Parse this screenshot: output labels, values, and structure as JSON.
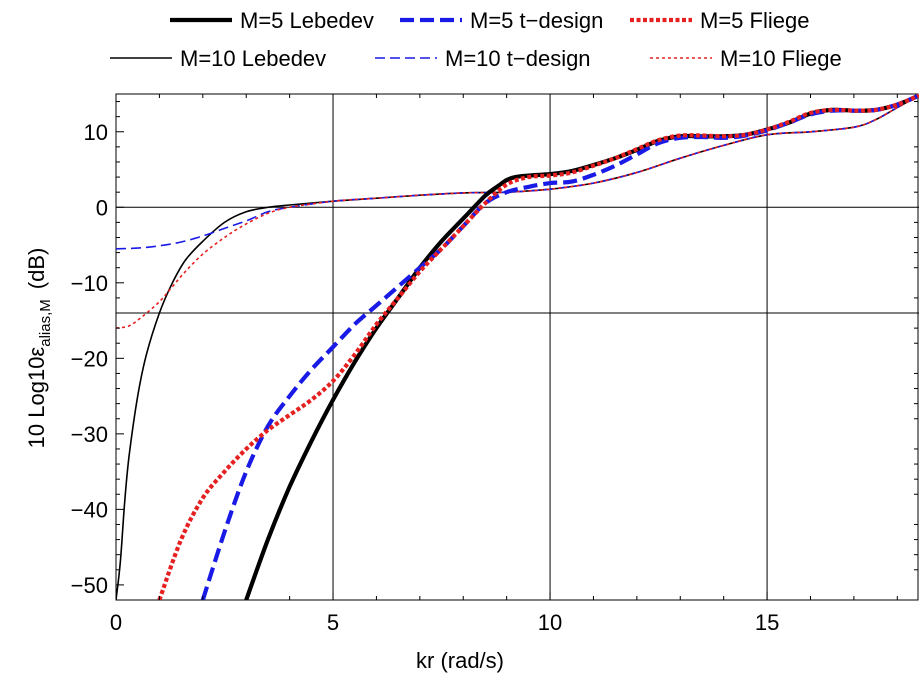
{
  "chart_data": {
    "type": "line",
    "xlabel": "kr (rad/s)",
    "ylabel": {
      "prefix": "10 Log10",
      "symbol": "ε",
      "subscript": "alias,M",
      "suffix": "(dB)"
    },
    "xlim": [
      0,
      18.5
    ],
    "ylim": [
      -52,
      15
    ],
    "xticks": [
      0,
      5,
      10,
      15
    ],
    "yticks": [
      10,
      0,
      -10,
      -20,
      -30,
      -40,
      -50
    ],
    "xtick_labels": [
      "0",
      "5",
      "10",
      "15"
    ],
    "ytick_labels": [
      "10",
      "0",
      "−10",
      "−20",
      "−30",
      "−40",
      "−50"
    ],
    "grid_x": [
      5,
      10,
      15
    ],
    "grid_y": [
      0,
      -14
    ],
    "legend_position": "top",
    "series": [
      {
        "name": "M=5 Lebedev",
        "color": "#000000",
        "dash": "solid",
        "weight": "thick",
        "x": [
          3.0,
          3.5,
          4.0,
          4.5,
          5.0,
          5.5,
          6.0,
          6.5,
          7.0,
          7.5,
          8.0,
          8.5,
          8.8,
          9.0,
          9.2,
          9.5,
          10.0,
          10.5,
          11.0,
          11.5,
          12.0,
          12.5,
          13.0,
          13.5,
          14.0,
          14.5,
          15.0,
          15.5,
          16.0,
          16.5,
          17.0,
          17.5,
          18.0,
          18.5
        ],
        "y": [
          -52,
          -44,
          -37,
          -31,
          -25.5,
          -20.5,
          -16,
          -12,
          -8,
          -4.5,
          -1.5,
          1.5,
          2.8,
          3.6,
          4.0,
          4.2,
          4.4,
          4.8,
          5.6,
          6.5,
          7.6,
          8.8,
          9.4,
          9.4,
          9.4,
          9.6,
          10.3,
          11.2,
          12.4,
          12.9,
          12.8,
          12.9,
          13.6,
          14.8
        ]
      },
      {
        "name": "M=5 t−design",
        "color": "#1a1ae6",
        "dash": "dashed",
        "weight": "thick",
        "x": [
          2.0,
          2.5,
          3.0,
          3.5,
          4.0,
          4.5,
          5.0,
          5.5,
          6.0,
          6.5,
          7.0,
          7.5,
          8.0,
          8.5,
          9.0,
          9.5,
          10.0,
          10.5,
          11.0,
          11.5,
          12.0,
          12.5,
          13.0,
          13.5,
          14.0,
          14.5,
          15.0,
          15.5,
          16.0,
          16.5,
          17.0,
          17.5,
          18.0,
          18.5
        ],
        "y": [
          -52,
          -43,
          -35,
          -29,
          -25,
          -21.5,
          -18.5,
          -15.5,
          -13,
          -10.5,
          -8,
          -5.5,
          -2.5,
          0.5,
          2.0,
          2.7,
          3.2,
          3.4,
          4.3,
          5.5,
          7.0,
          8.5,
          9.2,
          9.3,
          9.2,
          9.5,
          10.2,
          11.2,
          12.3,
          12.8,
          12.8,
          12.9,
          13.6,
          14.8
        ]
      },
      {
        "name": "M=5 Fliege",
        "color": "#e62020",
        "dash": "dotted",
        "weight": "thick",
        "x": [
          1.0,
          1.5,
          2.0,
          2.5,
          3.0,
          3.5,
          4.0,
          4.5,
          5.0,
          5.5,
          6.0,
          6.5,
          7.0,
          7.5,
          8.0,
          8.5,
          9.0,
          9.5,
          10.0,
          10.5,
          11.0,
          11.5,
          12.0,
          12.5,
          13.0,
          13.5,
          14.0,
          14.5,
          15.0,
          15.5,
          16.0,
          16.5,
          17.0,
          17.5,
          18.0,
          18.5
        ],
        "y": [
          -52,
          -44,
          -38.5,
          -35,
          -32,
          -29.5,
          -27.5,
          -25.5,
          -23,
          -19.5,
          -15.5,
          -12,
          -8.5,
          -5.5,
          -2.5,
          0.5,
          3.0,
          4.0,
          4.2,
          4.6,
          5.5,
          6.5,
          7.7,
          8.9,
          9.5,
          9.5,
          9.4,
          9.6,
          10.3,
          11.3,
          12.5,
          12.9,
          12.8,
          12.9,
          13.6,
          14.8
        ]
      },
      {
        "name": "M=10 Lebedev",
        "color": "#000000",
        "dash": "solid",
        "weight": "thin",
        "x": [
          0.0,
          0.1,
          0.2,
          0.3,
          0.5,
          0.7,
          1.0,
          1.3,
          1.6,
          2.0,
          2.5,
          3.0,
          3.5,
          4.0,
          5.0,
          6.0,
          7.0,
          8.0,
          9.0,
          10.0,
          11.0,
          12.0,
          13.0,
          14.0,
          15.0,
          16.0,
          17.0,
          17.5,
          18.0,
          18.5
        ],
        "y": [
          -52,
          -47,
          -39,
          -33,
          -25,
          -19.5,
          -14,
          -10,
          -7,
          -4.5,
          -2,
          -0.6,
          0,
          0.3,
          0.8,
          1.2,
          1.6,
          1.9,
          2.0,
          2.4,
          3.2,
          4.6,
          6.5,
          8.2,
          9.6,
          10.0,
          10.6,
          11.6,
          13.2,
          14.8
        ]
      },
      {
        "name": "M=10 t−design",
        "color": "#1a1ae6",
        "dash": "dashed",
        "weight": "thin",
        "x": [
          0.0,
          0.5,
          1.0,
          1.5,
          2.0,
          2.5,
          3.0,
          3.5,
          4.0,
          5.0,
          6.0,
          7.0,
          8.0,
          9.0,
          10.0,
          11.0,
          12.0,
          13.0,
          14.0,
          15.0,
          16.0,
          17.0,
          17.5,
          18.0,
          18.5
        ],
        "y": [
          -5.5,
          -5.4,
          -5.1,
          -4.6,
          -3.8,
          -2.8,
          -1.8,
          -0.6,
          0,
          0.8,
          1.2,
          1.6,
          1.9,
          2.0,
          2.4,
          3.2,
          4.6,
          6.5,
          8.2,
          9.6,
          10.0,
          10.6,
          11.6,
          13.2,
          14.8
        ]
      },
      {
        "name": "M=10 Fliege",
        "color": "#e62020",
        "dash": "dotted",
        "weight": "thin",
        "x": [
          0.0,
          0.3,
          0.6,
          1.0,
          1.3,
          1.6,
          2.0,
          2.5,
          3.0,
          3.5,
          4.0,
          5.0,
          6.0,
          7.0,
          8.0,
          9.0,
          10.0,
          11.0,
          12.0,
          13.0,
          14.0,
          15.0,
          16.0,
          17.0,
          17.5,
          18.0,
          18.5
        ],
        "y": [
          -16,
          -15.7,
          -14.5,
          -12.5,
          -10.5,
          -8.5,
          -6.2,
          -4,
          -2.2,
          -0.8,
          0,
          0.8,
          1.2,
          1.6,
          1.9,
          2.0,
          2.4,
          3.2,
          4.6,
          6.5,
          8.2,
          9.6,
          10.0,
          10.6,
          11.6,
          13.2,
          14.8
        ]
      }
    ]
  }
}
